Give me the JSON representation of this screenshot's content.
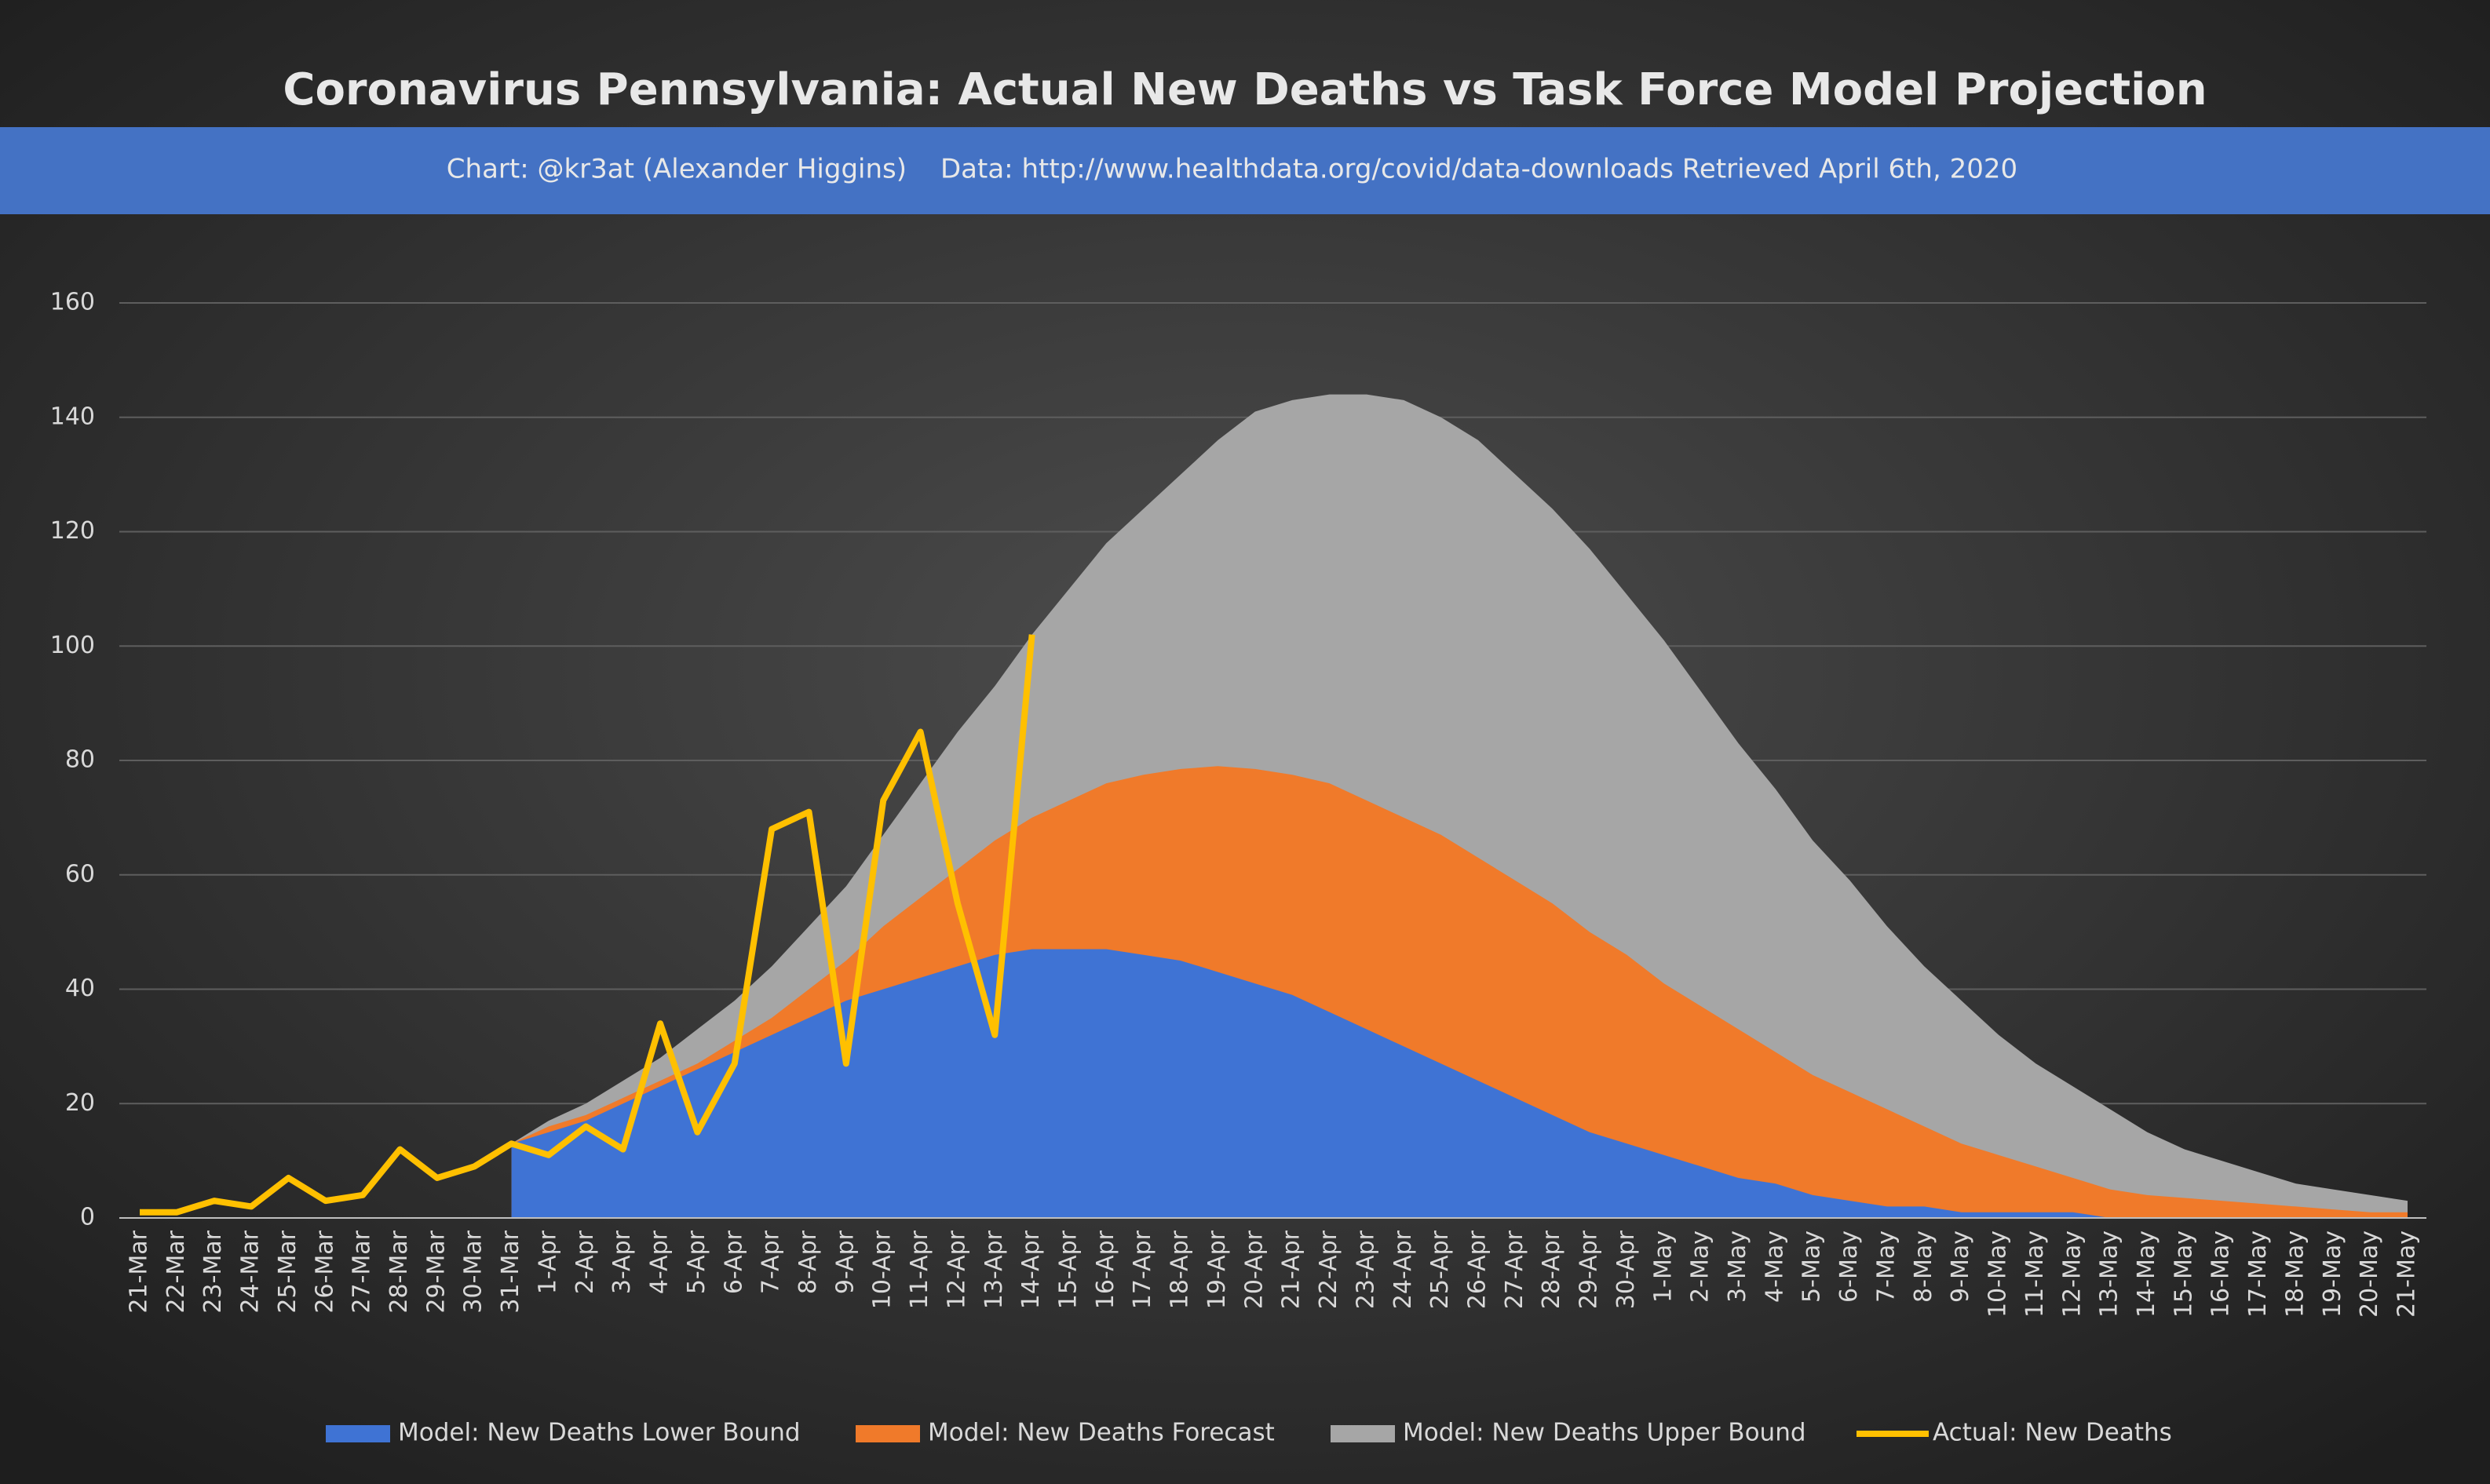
{
  "chart_data": {
    "type": "area",
    "title": "Coronavirus Pennsylvania: Actual New Deaths vs Task Force Model Projection",
    "credit": "Chart: @kr3at (Alexander Higgins)",
    "source": "Data: http://www.healthdata.org/covid/data-downloads Retrieved April 6th, 2020",
    "categories": [
      "21-Mar",
      "22-Mar",
      "23-Mar",
      "24-Mar",
      "25-Mar",
      "26-Mar",
      "27-Mar",
      "28-Mar",
      "29-Mar",
      "30-Mar",
      "31-Mar",
      "1-Apr",
      "2-Apr",
      "3-Apr",
      "4-Apr",
      "5-Apr",
      "6-Apr",
      "7-Apr",
      "8-Apr",
      "9-Apr",
      "10-Apr",
      "11-Apr",
      "12-Apr",
      "13-Apr",
      "14-Apr",
      "15-Apr",
      "16-Apr",
      "17-Apr",
      "18-Apr",
      "19-Apr",
      "20-Apr",
      "21-Apr",
      "22-Apr",
      "23-Apr",
      "24-Apr",
      "25-Apr",
      "26-Apr",
      "27-Apr",
      "28-Apr",
      "29-Apr",
      "30-Apr",
      "1-May",
      "2-May",
      "3-May",
      "4-May",
      "5-May",
      "6-May",
      "7-May",
      "8-May",
      "9-May",
      "10-May",
      "11-May",
      "12-May",
      "13-May",
      "14-May",
      "15-May",
      "16-May",
      "17-May",
      "18-May",
      "19-May",
      "20-May",
      "21-May"
    ],
    "series": [
      {
        "name": "Model: New Deaths Lower Bound",
        "color": "#3f73d4",
        "kind": "area",
        "values": [
          null,
          null,
          null,
          null,
          null,
          null,
          null,
          null,
          null,
          null,
          13,
          15,
          17,
          20,
          23,
          26,
          29,
          32,
          35,
          38,
          40,
          42,
          44,
          46,
          47,
          47,
          47,
          46,
          45,
          43,
          41,
          39,
          36,
          33,
          30,
          27,
          24,
          21,
          18,
          15,
          13,
          11,
          9,
          7,
          6,
          4,
          3,
          2,
          2,
          1,
          1,
          1,
          1,
          0,
          0,
          0,
          0,
          0,
          0,
          0,
          0,
          0
        ]
      },
      {
        "name": "Model: New Deaths Forecast",
        "color": "#f07a2a",
        "kind": "area",
        "values": [
          null,
          null,
          null,
          null,
          null,
          null,
          null,
          null,
          null,
          null,
          13,
          16,
          18,
          21,
          24,
          27,
          31,
          35,
          40,
          45,
          51,
          56,
          61,
          66,
          70,
          73,
          76,
          77.5,
          78.5,
          79,
          78.5,
          77.5,
          76,
          73,
          70,
          67,
          63,
          59,
          55,
          50,
          46,
          41,
          37,
          33,
          29,
          25,
          22,
          19,
          16,
          13,
          11,
          9,
          7,
          5,
          4,
          3.5,
          3,
          2.5,
          2,
          1.5,
          1,
          1
        ]
      },
      {
        "name": "Model: New Deaths Upper Bound",
        "color": "#a6a6a6",
        "kind": "area",
        "values": [
          null,
          null,
          null,
          null,
          null,
          null,
          null,
          null,
          null,
          null,
          13,
          17,
          20,
          24,
          28,
          33,
          38,
          44,
          51,
          58,
          67,
          76,
          85,
          93,
          102,
          110,
          118,
          124,
          130,
          136,
          141,
          143,
          144,
          144,
          143,
          140,
          136,
          130,
          124,
          117,
          109,
          101,
          92,
          83,
          75,
          66,
          59,
          51,
          44,
          38,
          32,
          27,
          23,
          19,
          15,
          12,
          10,
          8,
          6,
          5,
          4,
          3
        ]
      },
      {
        "name": "Actual: New Deaths",
        "color": "#ffc000",
        "kind": "line",
        "values": [
          1,
          1,
          3,
          2,
          7,
          3,
          4,
          12,
          7,
          9,
          13,
          11,
          16,
          12,
          34,
          15,
          27,
          68,
          71,
          27,
          73,
          85,
          55,
          32,
          102,
          null,
          null,
          null,
          null,
          null,
          null,
          null,
          null,
          null,
          null,
          null,
          null,
          null,
          null,
          null,
          null,
          null,
          null,
          null,
          null,
          null,
          null,
          null,
          null,
          null,
          null,
          null,
          null,
          null,
          null,
          null,
          null,
          null,
          null,
          null,
          null,
          null
        ]
      }
    ],
    "ylim": [
      0,
      160
    ],
    "yticks": [
      0,
      20,
      40,
      60,
      80,
      100,
      120,
      140,
      160
    ],
    "grid": true,
    "legend": "bottom"
  }
}
